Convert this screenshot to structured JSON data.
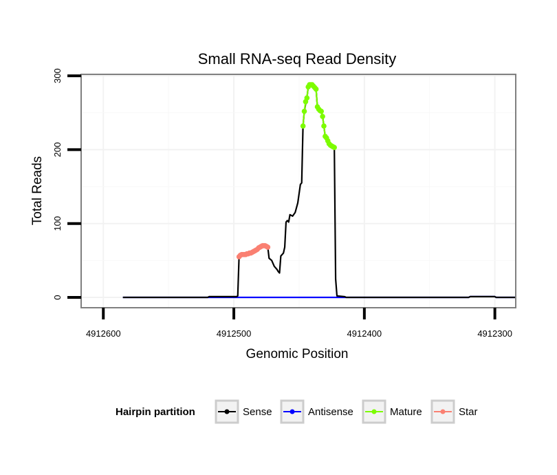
{
  "chart_data": {
    "type": "line",
    "title": "Small RNA-seq Read Density",
    "xlabel": "Genomic Position",
    "ylabel": "Total Reads",
    "xlim": [
      4912617,
      4912284
    ],
    "ylim": [
      -14,
      302
    ],
    "x_reversed": true,
    "grid": true,
    "x_ticks": [
      4912600,
      4912500,
      4912400,
      4912300
    ],
    "x_tick_labels": [
      "4912600",
      "4912500",
      "4912400",
      "4912300"
    ],
    "y_ticks": [
      0,
      100,
      200,
      300
    ],
    "y_tick_labels": [
      "0",
      "100",
      "200",
      "300"
    ],
    "legend": {
      "title": "Hairpin partition",
      "position": "bottom",
      "entries": [
        {
          "label": "Sense",
          "color": "#000000"
        },
        {
          "label": "Antisense",
          "color": "#0000ff"
        },
        {
          "label": "Mature",
          "color": "#7cfc00"
        },
        {
          "label": "Star",
          "color": "#fa8072"
        }
      ]
    },
    "series": [
      {
        "name": "Sense",
        "color": "#000000",
        "points": [
          [
            4912585,
            0
          ],
          [
            4912520,
            0
          ],
          [
            4912519,
            1
          ],
          [
            4912498,
            1
          ],
          [
            4912497,
            2
          ],
          [
            4912496,
            55
          ],
          [
            4912495,
            57
          ],
          [
            4912491,
            58
          ],
          [
            4912487,
            60
          ],
          [
            4912485,
            62
          ],
          [
            4912482,
            65
          ],
          [
            4912480,
            68
          ],
          [
            4912476,
            70
          ],
          [
            4912474,
            68
          ],
          [
            4912473,
            53
          ],
          [
            4912471,
            50
          ],
          [
            4912469,
            42
          ],
          [
            4912467,
            38
          ],
          [
            4912466,
            35
          ],
          [
            4912465,
            33
          ],
          [
            4912464,
            56
          ],
          [
            4912462,
            60
          ],
          [
            4912461,
            68
          ],
          [
            4912460,
            102
          ],
          [
            4912459,
            104
          ],
          [
            4912458,
            102
          ],
          [
            4912457,
            112
          ],
          [
            4912455,
            110
          ],
          [
            4912453,
            115
          ],
          [
            4912451,
            128
          ],
          [
            4912449,
            153
          ],
          [
            4912448,
            155
          ],
          [
            4912447,
            232
          ],
          [
            4912446,
            252
          ],
          [
            4912445,
            262
          ],
          [
            4912444,
            270
          ],
          [
            4912443,
            285
          ],
          [
            4912440,
            288
          ],
          [
            4912438,
            285
          ],
          [
            4912437,
            282
          ],
          [
            4912436,
            258
          ],
          [
            4912435,
            255
          ],
          [
            4912433,
            252
          ],
          [
            4912432,
            245
          ],
          [
            4912431,
            232
          ],
          [
            4912430,
            218
          ],
          [
            4912429,
            216
          ],
          [
            4912428,
            210
          ],
          [
            4912427,
            208
          ],
          [
            4912426,
            206
          ],
          [
            4912425,
            205
          ],
          [
            4912424,
            204
          ],
          [
            4912423,
            203
          ],
          [
            4912422,
            25
          ],
          [
            4912421,
            2
          ],
          [
            4912415,
            1
          ],
          [
            4912414,
            0
          ],
          [
            4912320,
            0
          ],
          [
            4912319,
            1
          ],
          [
            4912300,
            1
          ],
          [
            4912299,
            0
          ],
          [
            4912284,
            0
          ]
        ]
      },
      {
        "name": "Antisense",
        "color": "#0000ff",
        "points": [
          [
            4912585,
            0
          ],
          [
            4912520,
            0
          ],
          [
            4912519,
            0
          ],
          [
            4912498,
            0
          ],
          [
            4912497,
            0
          ],
          [
            4912415,
            0
          ],
          [
            4912320,
            0
          ],
          [
            4912319,
            1
          ],
          [
            4912300,
            1
          ],
          [
            4912299,
            0
          ],
          [
            4912284,
            0
          ]
        ]
      },
      {
        "name": "Mature",
        "color": "#7cfc00",
        "points": [
          [
            4912447,
            232
          ],
          [
            4912446,
            252
          ],
          [
            4912445,
            265
          ],
          [
            4912444,
            270
          ],
          [
            4912443,
            285
          ],
          [
            4912442,
            288
          ],
          [
            4912441,
            288
          ],
          [
            4912440,
            288
          ],
          [
            4912439,
            286
          ],
          [
            4912438,
            284
          ],
          [
            4912437,
            282
          ],
          [
            4912436,
            258
          ],
          [
            4912435,
            255
          ],
          [
            4912434,
            253
          ],
          [
            4912433,
            252
          ],
          [
            4912432,
            245
          ],
          [
            4912431,
            232
          ],
          [
            4912430,
            218
          ],
          [
            4912429,
            216
          ],
          [
            4912428,
            212
          ],
          [
            4912427,
            208
          ],
          [
            4912426,
            206
          ],
          [
            4912425,
            205
          ],
          [
            4912424,
            204
          ],
          [
            4912423,
            203
          ]
        ]
      },
      {
        "name": "Star",
        "color": "#fa8072",
        "points": [
          [
            4912496,
            55
          ],
          [
            4912495,
            57
          ],
          [
            4912494,
            58
          ],
          [
            4912493,
            58
          ],
          [
            4912492,
            58
          ],
          [
            4912491,
            58
          ],
          [
            4912490,
            59
          ],
          [
            4912489,
            59
          ],
          [
            4912488,
            60
          ],
          [
            4912487,
            60
          ],
          [
            4912486,
            61
          ],
          [
            4912485,
            62
          ],
          [
            4912484,
            63
          ],
          [
            4912483,
            64
          ],
          [
            4912482,
            65
          ],
          [
            4912481,
            67
          ],
          [
            4912480,
            68
          ],
          [
            4912479,
            69
          ],
          [
            4912478,
            70
          ],
          [
            4912477,
            70
          ],
          [
            4912476,
            70
          ],
          [
            4912475,
            69
          ],
          [
            4912474,
            68
          ]
        ]
      }
    ]
  }
}
